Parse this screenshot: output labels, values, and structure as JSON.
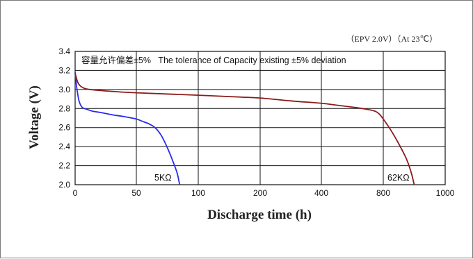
{
  "chart_data": {
    "type": "line",
    "conditions": "（EPV 2.0V）（At 23℃）",
    "annotation": "容量允许偏差±5%   The tolerance of Capacity existing ±5% deviation",
    "xlabel": "Discharge time (h)",
    "ylabel": "Voltage (V)",
    "grid": true,
    "x_scale": "piecewise",
    "x_ticks": [
      0,
      50,
      100,
      200,
      400,
      800,
      1000
    ],
    "y_ticks": [
      "2.0",
      "2.2",
      "2.4",
      "2.6",
      "2.8",
      "3.0",
      "3.2",
      "3.4"
    ],
    "ylim": [
      2.0,
      3.4
    ],
    "xlim": [
      0,
      1000
    ],
    "series": [
      {
        "name": "5KΩ",
        "color": "#2a2af0",
        "points": [
          [
            0,
            3.18
          ],
          [
            1,
            3.05
          ],
          [
            2,
            2.96
          ],
          [
            3,
            2.89
          ],
          [
            4,
            2.85
          ],
          [
            6,
            2.81
          ],
          [
            10,
            2.79
          ],
          [
            15,
            2.77
          ],
          [
            20,
            2.76
          ],
          [
            30,
            2.735
          ],
          [
            40,
            2.715
          ],
          [
            50,
            2.69
          ],
          [
            55,
            2.665
          ],
          [
            60,
            2.64
          ],
          [
            65,
            2.6
          ],
          [
            70,
            2.52
          ],
          [
            75,
            2.39
          ],
          [
            80,
            2.23
          ],
          [
            83,
            2.12
          ],
          [
            85,
            2.0
          ]
        ]
      },
      {
        "name": "62KΩ",
        "color": "#8b1a1a",
        "points": [
          [
            0,
            3.17
          ],
          [
            2,
            3.08
          ],
          [
            4,
            3.04
          ],
          [
            8,
            3.01
          ],
          [
            15,
            2.995
          ],
          [
            30,
            2.98
          ],
          [
            50,
            2.965
          ],
          [
            100,
            2.94
          ],
          [
            150,
            2.925
          ],
          [
            200,
            2.91
          ],
          [
            300,
            2.88
          ],
          [
            400,
            2.855
          ],
          [
            500,
            2.835
          ],
          [
            600,
            2.815
          ],
          [
            700,
            2.79
          ],
          [
            750,
            2.77
          ],
          [
            775,
            2.74
          ],
          [
            800,
            2.69
          ],
          [
            825,
            2.57
          ],
          [
            850,
            2.43
          ],
          [
            875,
            2.27
          ],
          [
            890,
            2.13
          ],
          [
            900,
            2.0
          ]
        ]
      }
    ]
  }
}
